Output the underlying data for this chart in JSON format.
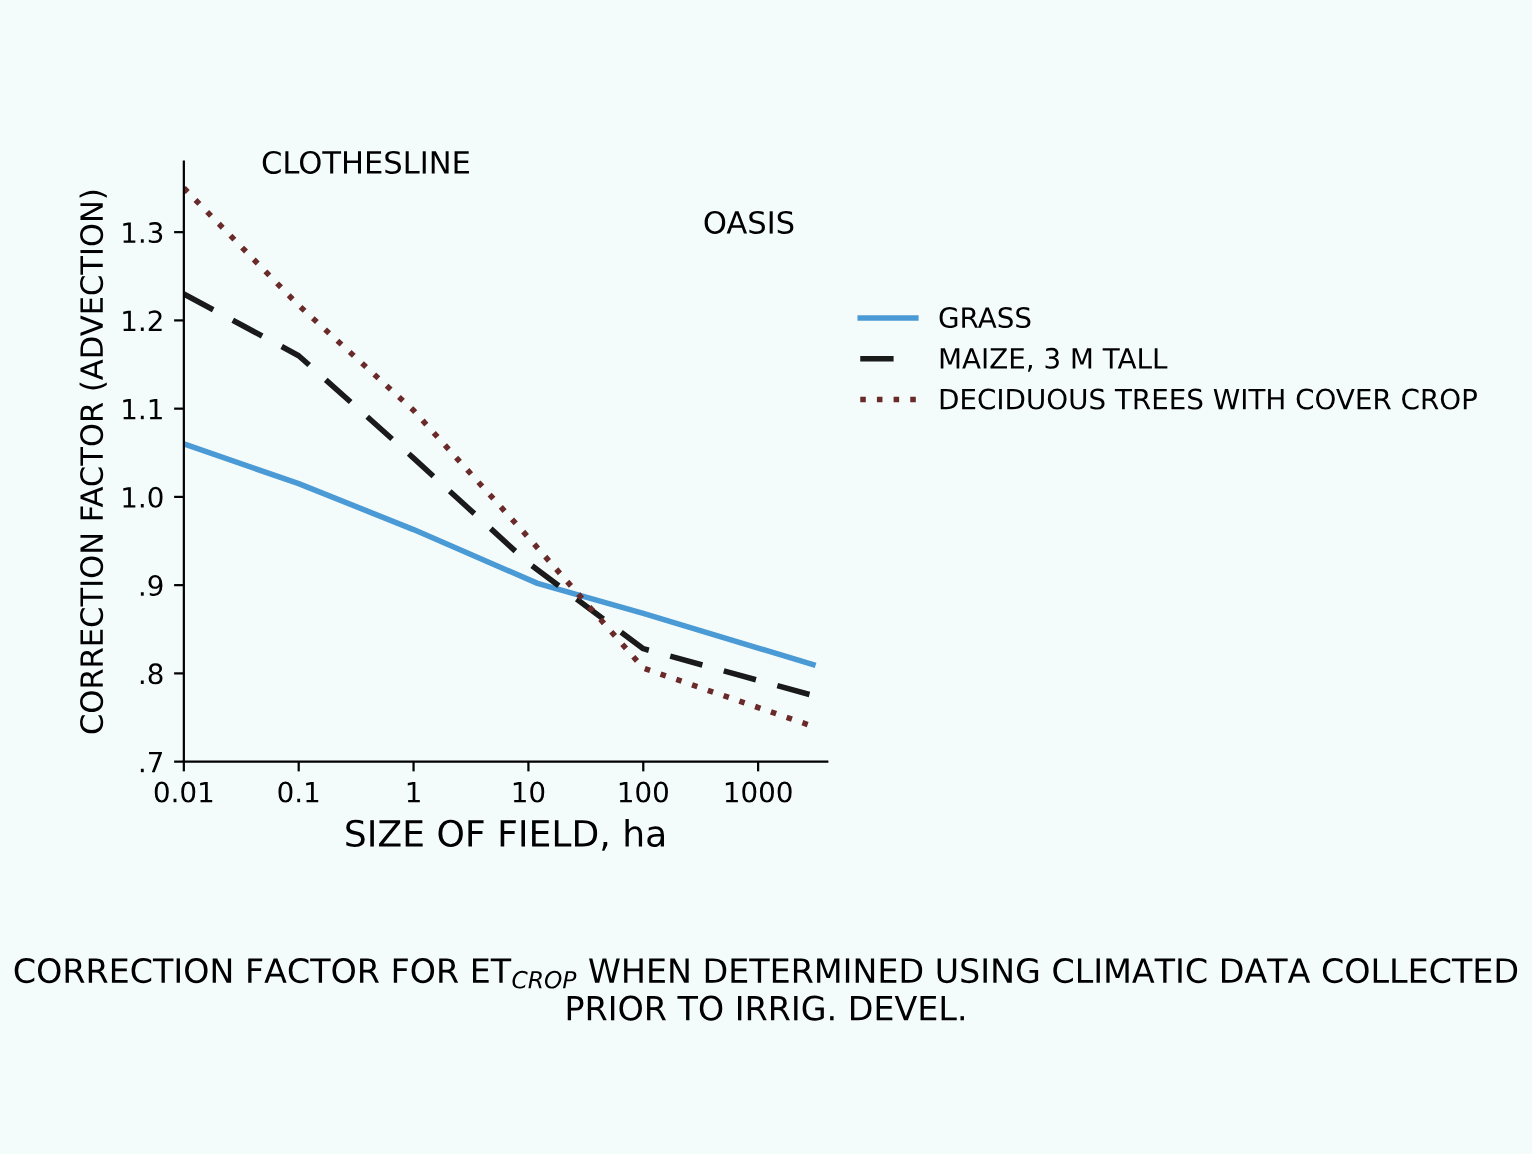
{
  "chart_data": {
    "type": "line",
    "xlabel": "SIZE OF FIELD, ha",
    "ylabel": "CORRECTION FACTOR (ADVECTION)",
    "annotations": [
      "CLOTHESLINE",
      "OASIS",
      "CORRECTION FACTOR FOR ET$_{CROP}$ WHEN DETERMINED USING CLIMATIC DATA COLLECTED PRIOR TO IRRIG. DEVEL."
    ],
    "log": "x",
    "xlim": [
      0.01,
      4000
    ],
    "ylim": [
      0.7,
      1.38
    ],
    "xticks": [
      0.01,
      0.1,
      1,
      10,
      100,
      1000
    ],
    "yticks": [
      {
        "value": 0.7,
        "label": ".7"
      },
      {
        "value": 0.8,
        "label": ".8"
      },
      {
        "value": 0.9,
        "label": ".9"
      },
      {
        "value": 1.0,
        "label": "1.0"
      },
      {
        "value": 1.1,
        "label": "1.1"
      },
      {
        "value": 1.2,
        "label": "1.2"
      },
      {
        "value": 1.3,
        "label": "1.3"
      }
    ],
    "grid": false,
    "legend": "top right",
    "marker": "none",
    "series": [
      {
        "name": "GRASS",
        "color": "#4a9ad6",
        "line_style": "solid",
        "x": [
          0.01,
          0.1,
          1,
          12,
          100,
          3000
        ],
        "values": [
          1.06,
          1.015,
          0.963,
          0.902,
          0.868,
          0.81
        ]
      },
      {
        "name": "MAIZE, 3 M TALL",
        "color": "#1a1a1a",
        "line_style": "dashed",
        "x": [
          0.01,
          0.1,
          1,
          10,
          100,
          3000
        ],
        "values": [
          1.23,
          1.16,
          1.044,
          0.925,
          0.828,
          0.775
        ]
      },
      {
        "name": "DECIDUOUS TREES WITH COVER CROP",
        "color": "#6a2a2a",
        "line_style": "dotted",
        "x": [
          0.01,
          0.1,
          1,
          10,
          100,
          3000
        ],
        "values": [
          1.35,
          1.217,
          1.098,
          0.954,
          0.806,
          0.74
        ]
      }
    ]
  }
}
